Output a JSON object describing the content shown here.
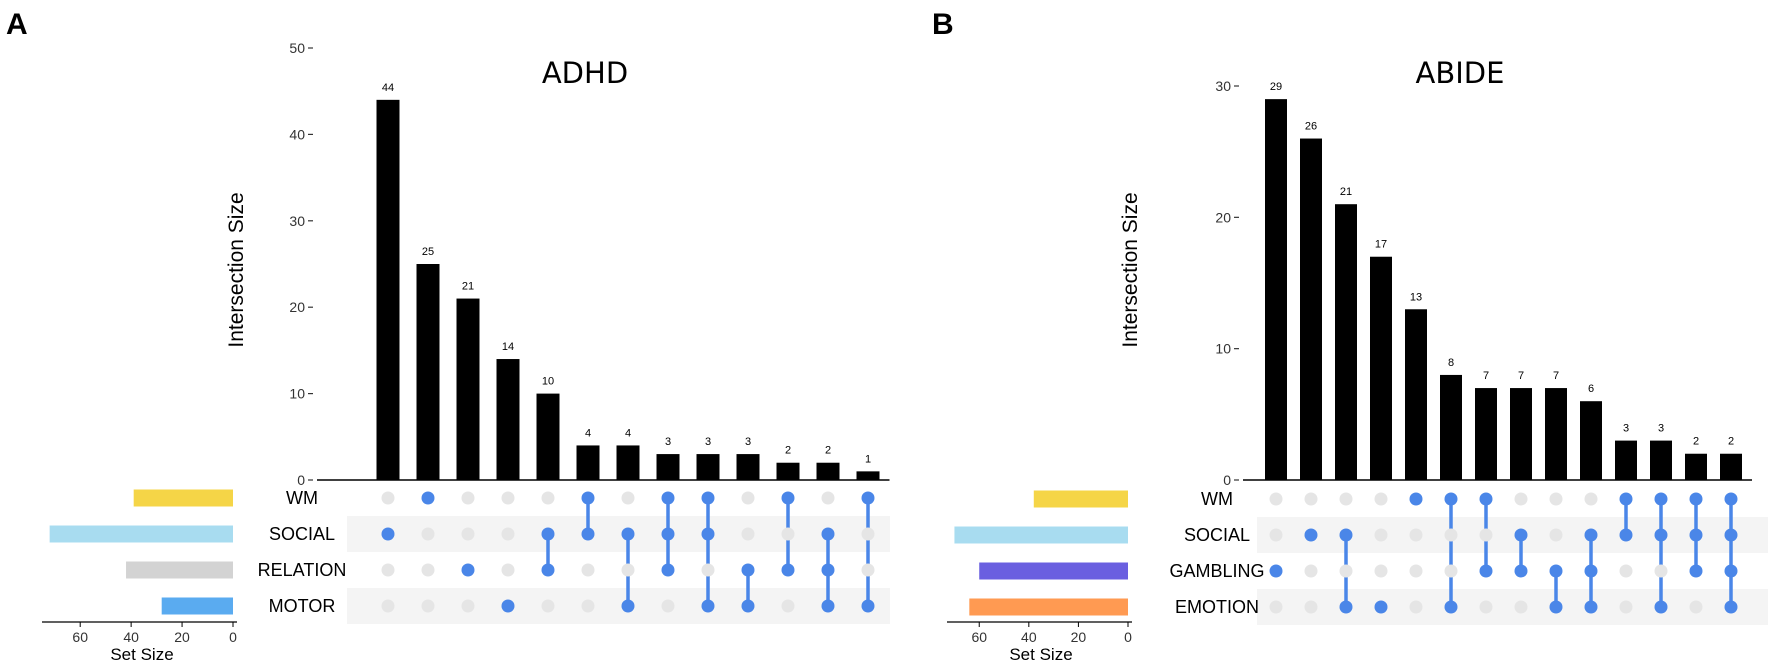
{
  "colors": {
    "bar": "#000000",
    "dot_active": "#4a86e8",
    "dot_inactive": "#e5e5e5",
    "row_band": "#f4f4f4"
  },
  "axis_titles": {
    "intersection": "Intersection Size",
    "set_size": "Set Size"
  },
  "chart_data": [
    {
      "type": "upset",
      "panel_label": "A",
      "title": "ADHD",
      "ylabel": "Intersection Size",
      "set_size_label": "Set Size",
      "ylim": [
        0,
        50
      ],
      "yticks": [
        0,
        10,
        20,
        30,
        40,
        50
      ],
      "sets": [
        {
          "name": "WM",
          "size": 39,
          "color": "#f5d547"
        },
        {
          "name": "SOCIAL",
          "size": 72,
          "color": "#a8dcf0"
        },
        {
          "name": "RELATION",
          "size": 42,
          "color": "#d3d3d3"
        },
        {
          "name": "MOTOR",
          "size": 28,
          "color": "#5aabf0"
        }
      ],
      "set_size_ticks": [
        60,
        40,
        20,
        0
      ],
      "set_size_max": 75,
      "intersections": [
        {
          "value": 44,
          "sets": [
            1
          ]
        },
        {
          "value": 25,
          "sets": [
            0
          ]
        },
        {
          "value": 21,
          "sets": [
            2
          ]
        },
        {
          "value": 14,
          "sets": [
            3
          ]
        },
        {
          "value": 10,
          "sets": [
            1,
            2
          ]
        },
        {
          "value": 4,
          "sets": [
            0,
            1
          ]
        },
        {
          "value": 4,
          "sets": [
            1,
            3
          ]
        },
        {
          "value": 3,
          "sets": [
            0,
            1,
            2
          ]
        },
        {
          "value": 3,
          "sets": [
            0,
            1,
            3
          ]
        },
        {
          "value": 3,
          "sets": [
            2,
            3
          ]
        },
        {
          "value": 2,
          "sets": [
            0,
            2
          ]
        },
        {
          "value": 2,
          "sets": [
            1,
            2,
            3
          ]
        },
        {
          "value": 1,
          "sets": [
            0,
            3
          ]
        }
      ]
    },
    {
      "type": "upset",
      "panel_label": "B",
      "title": "ABIDE",
      "ylabel": "Intersection Size",
      "set_size_label": "Set Size",
      "ylim": [
        0,
        30
      ],
      "yticks": [
        0,
        10,
        20,
        30
      ],
      "sets": [
        {
          "name": "WM",
          "size": 38,
          "color": "#f5d547"
        },
        {
          "name": "SOCIAL",
          "size": 70,
          "color": "#a8dcf0"
        },
        {
          "name": "GAMBLING",
          "size": 60,
          "color": "#6a5fe0"
        },
        {
          "name": "EMOTION",
          "size": 64,
          "color": "#ff9a52"
        }
      ],
      "set_size_ticks": [
        60,
        40,
        20,
        0
      ],
      "set_size_max": 73,
      "intersections": [
        {
          "value": 29,
          "sets": [
            2
          ]
        },
        {
          "value": 26,
          "sets": [
            1
          ]
        },
        {
          "value": 21,
          "sets": [
            1,
            3
          ]
        },
        {
          "value": 17,
          "sets": [
            3
          ]
        },
        {
          "value": 13,
          "sets": [
            0
          ]
        },
        {
          "value": 8,
          "sets": [
            0,
            3
          ]
        },
        {
          "value": 7,
          "sets": [
            0,
            2
          ]
        },
        {
          "value": 7,
          "sets": [
            1,
            2
          ]
        },
        {
          "value": 7,
          "sets": [
            2,
            3
          ]
        },
        {
          "value": 6,
          "sets": [
            1,
            2,
            3
          ]
        },
        {
          "value": 3,
          "sets": [
            0,
            1
          ]
        },
        {
          "value": 3,
          "sets": [
            0,
            1,
            3
          ]
        },
        {
          "value": 2,
          "sets": [
            0,
            1,
            2
          ]
        },
        {
          "value": 2,
          "sets": [
            0,
            1,
            2,
            3
          ]
        }
      ]
    }
  ]
}
